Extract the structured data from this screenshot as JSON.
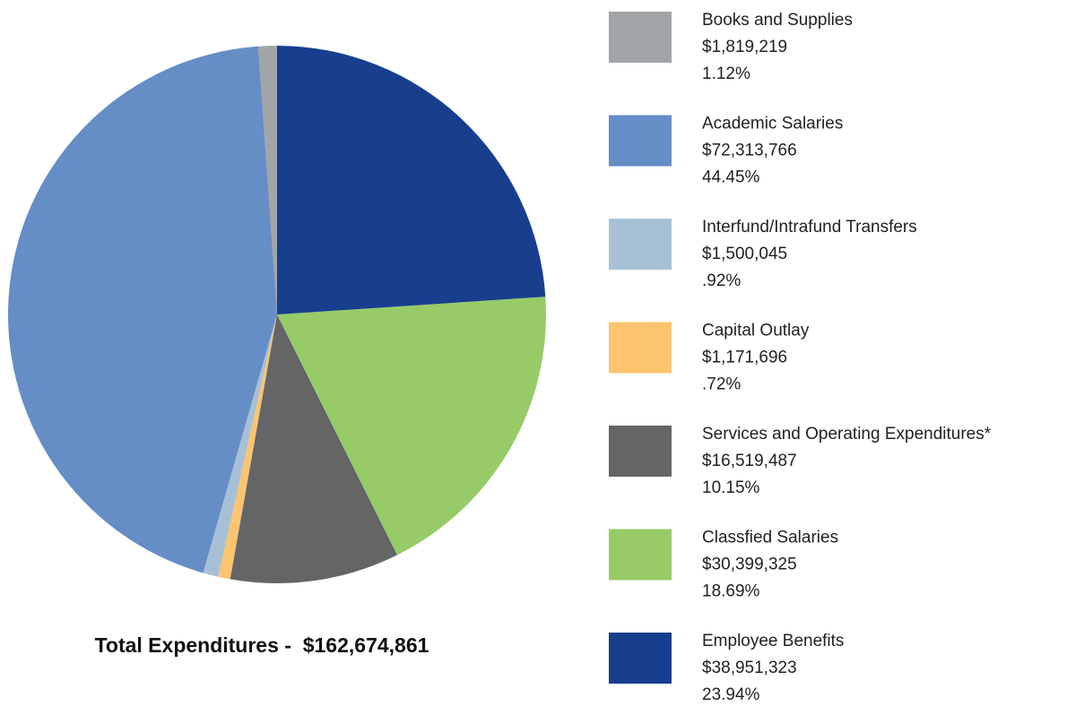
{
  "chart_data": {
    "type": "pie",
    "categories": [
      "Books and Supplies",
      "Academic Salaries",
      "Interfund/Intrafund Transfers",
      "Capital Outlay",
      "Services and Operating Expenditures*",
      "Classfied Salaries",
      "Employee Benefits"
    ],
    "values": [
      1819219,
      72313766,
      1500045,
      1171696,
      16519487,
      30399325,
      38951323
    ],
    "value_labels": [
      "$1,819,219",
      "$72,313,766",
      "$1,500,045",
      "$1,171,696",
      "$16,519,487",
      "$30,399,325",
      "$38,951,323"
    ],
    "percent_labels": [
      "1.12%",
      "44.45%",
      ".92%",
      ".72%",
      "10.15%",
      "18.69%",
      "23.94%"
    ],
    "colors": [
      "#a2a5a8",
      "#658dc6",
      "#a7c0d6",
      "#fdc46f",
      "#646567",
      "#97cb68",
      "#173f8e"
    ],
    "total": "Total Expenditures -  $162,674,861"
  }
}
